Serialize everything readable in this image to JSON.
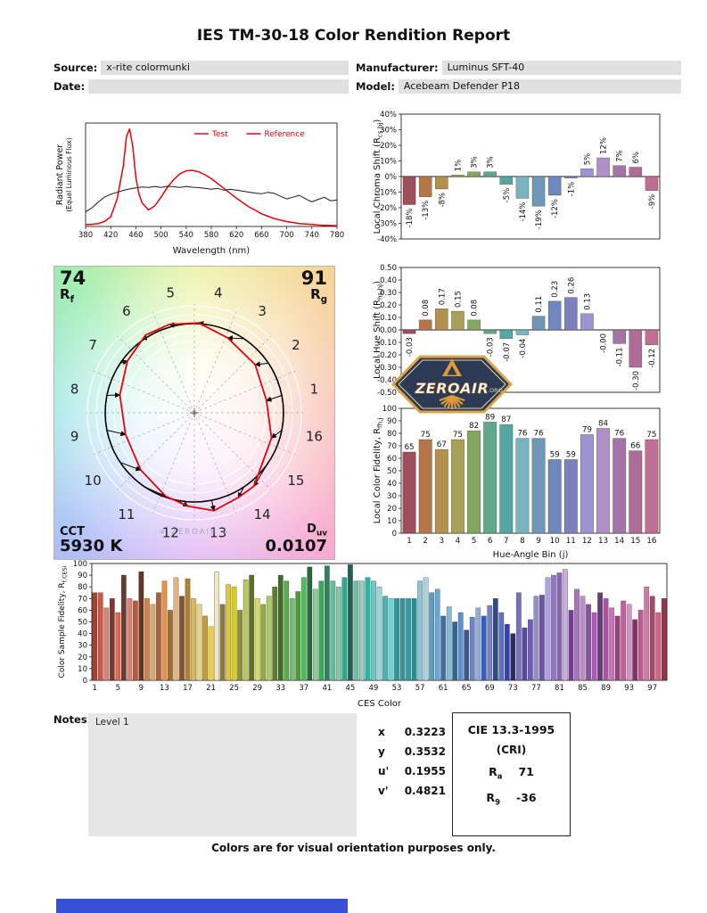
{
  "report": {
    "title": "IES TM-30-18 Color Rendition Report",
    "fields": {
      "source_label": "Source:",
      "source_value": "x-rite colormunki",
      "date_label": "Date:",
      "date_value": "",
      "manufacturer_label": "Manufacturer:",
      "manufacturer_value": "Luminus SFT-40",
      "model_label": "Model:",
      "model_value": "Acebeam Defender P18"
    },
    "notes_label": "Notes:",
    "notes_value": "Level 1",
    "chromaticity": [
      {
        "label": "x",
        "value": "0.3223"
      },
      {
        "label": "y",
        "value": "0.3532"
      },
      {
        "label": "u'",
        "value": "0.1955"
      },
      {
        "label": "v'",
        "value": "0.4821"
      }
    ],
    "cri_box": {
      "title": "CIE 13.3-1995",
      "subtitle": "(CRI)",
      "ra_main": "R",
      "ra_sub": "a",
      "ra_value": "71",
      "r9_main": "R",
      "r9_sub": "9",
      "r9_value": "-36"
    },
    "footer": "Colors are for visual orientation purposes only.",
    "bottom_bar_color": "#3a4fd8",
    "watermark_badge": {
      "name": "ZEROAIR",
      "suffix": ".ORG"
    },
    "watermark_small": "+ ZEROAIR +"
  },
  "vector_graphic": {
    "rf_value": "74",
    "rf_main": "R",
    "rf_sub": "f",
    "rg_value": "91",
    "rg_main": "R",
    "rg_sub": "g",
    "cct_label": "CCT",
    "cct_value": "5930 K",
    "duv_main": "D",
    "duv_sub": "uv",
    "duv_value": "0.0107",
    "test_color": "#e8000b",
    "reference_color": "#000000"
  },
  "bin_colors": [
    "#9e4f5c",
    "#b5764a",
    "#b3914c",
    "#a8a058",
    "#82a65e",
    "#5fa98b",
    "#56a6a4",
    "#79b3bd",
    "#6f97b8",
    "#6f87bb",
    "#7e80bd",
    "#9b94cf",
    "#af8fc6",
    "#a275a6",
    "#ad6d96",
    "#c06e93"
  ],
  "chart_data": [
    {
      "id": "spd",
      "type": "line",
      "xlabel": "Wavelength (nm)",
      "ylabel_lines": [
        "Radiant Power",
        "(Equal Luminous Flux)"
      ],
      "xlim": [
        380,
        780
      ],
      "ylim": [
        0,
        1.06
      ],
      "xticks": [
        380,
        420,
        460,
        500,
        540,
        580,
        620,
        660,
        700,
        740,
        780
      ],
      "series": [
        {
          "name": "Test",
          "color": "#e8000b",
          "legend_color": "#e8000b",
          "width": 1.5,
          "x": [
            380,
            390,
            400,
            410,
            420,
            430,
            440,
            445,
            450,
            455,
            460,
            465,
            470,
            480,
            490,
            500,
            510,
            520,
            530,
            540,
            550,
            560,
            570,
            580,
            590,
            600,
            610,
            620,
            630,
            640,
            650,
            660,
            670,
            680,
            690,
            700,
            710,
            720,
            730,
            740,
            750,
            760,
            770,
            780
          ],
          "y": [
            0.02,
            0.02,
            0.03,
            0.05,
            0.1,
            0.28,
            0.62,
            0.92,
            1.0,
            0.82,
            0.5,
            0.33,
            0.24,
            0.17,
            0.21,
            0.3,
            0.4,
            0.48,
            0.54,
            0.57,
            0.575,
            0.56,
            0.53,
            0.49,
            0.44,
            0.39,
            0.34,
            0.29,
            0.245,
            0.2,
            0.165,
            0.13,
            0.105,
            0.08,
            0.065,
            0.05,
            0.04,
            0.03,
            0.025,
            0.02,
            0.015,
            0.012,
            0.01,
            0.008
          ]
        },
        {
          "name": "Reference",
          "color": "#1a1a1a",
          "legend_color": "#e8000b",
          "width": 1,
          "x": [
            380,
            390,
            400,
            410,
            420,
            430,
            440,
            450,
            460,
            470,
            480,
            490,
            500,
            510,
            520,
            530,
            540,
            550,
            560,
            570,
            580,
            590,
            600,
            610,
            620,
            630,
            640,
            650,
            660,
            670,
            680,
            690,
            700,
            710,
            720,
            730,
            740,
            750,
            760,
            770,
            780
          ],
          "y": [
            0.15,
            0.19,
            0.25,
            0.3,
            0.33,
            0.35,
            0.37,
            0.385,
            0.395,
            0.405,
            0.4,
            0.41,
            0.4,
            0.412,
            0.408,
            0.4,
            0.41,
            0.402,
            0.398,
            0.39,
            0.382,
            0.39,
            0.372,
            0.38,
            0.372,
            0.362,
            0.352,
            0.342,
            0.335,
            0.35,
            0.34,
            0.31,
            0.282,
            0.3,
            0.32,
            0.282,
            0.252,
            0.278,
            0.3,
            0.262,
            0.272
          ]
        }
      ]
    },
    {
      "id": "chroma_shift",
      "type": "bar",
      "ylabel_parts": {
        "pre": "Local Chroma Shift (R",
        "sub": "cs,hj",
        "post": ")"
      },
      "ylim": [
        -40,
        40
      ],
      "yticks": [
        "40%",
        "30%",
        "20%",
        "10%",
        "0%",
        "-10%",
        "-20%",
        "-30%",
        "-40%"
      ],
      "categories": [
        1,
        2,
        3,
        4,
        5,
        6,
        7,
        8,
        9,
        10,
        11,
        12,
        13,
        14,
        15,
        16
      ],
      "values": [
        -18,
        -13,
        -8,
        1,
        3,
        3,
        -5,
        -14,
        -19,
        -12,
        -1,
        5,
        12,
        7,
        6,
        -9
      ],
      "value_labels": [
        "-18%",
        "-13%",
        "-8%",
        "1%",
        "3%",
        "3%",
        "-5%",
        "-14%",
        "-19%",
        "-12%",
        "-1%",
        "5%",
        "12%",
        "7%",
        "6%",
        "-9%"
      ]
    },
    {
      "id": "hue_shift",
      "type": "bar",
      "ylabel_parts": {
        "pre": "Local Hue Shift (R",
        "sub": "hs,hj",
        "post": ")"
      },
      "ylim": [
        -0.5,
        0.5
      ],
      "yticks": [
        "0.50",
        "0.40",
        "0.30",
        "0.20",
        "0.10",
        "0.00",
        "-0.10",
        "-0.20",
        "-0.30",
        "-0.40",
        "-0.50"
      ],
      "categories": [
        1,
        2,
        3,
        4,
        5,
        6,
        7,
        8,
        9,
        10,
        11,
        12,
        13,
        14,
        15,
        16
      ],
      "values": [
        -0.03,
        0.08,
        0.17,
        0.15,
        0.08,
        -0.03,
        -0.07,
        -0.04,
        0.11,
        0.23,
        0.26,
        0.13,
        -0.0,
        -0.11,
        -0.3,
        -0.12
      ],
      "value_labels": [
        "-0.03",
        "0.08",
        "0.17",
        "0.15",
        "0.08",
        "-0.03",
        "-0.07",
        "-0.04",
        "0.11",
        "0.23",
        "0.26",
        "0.13",
        "-0.00",
        "-0.11",
        "-0.30",
        "-0.12"
      ]
    },
    {
      "id": "local_fidelity",
      "type": "bar",
      "xlabel": "Hue-Angle Bin (j)",
      "ylabel_parts": {
        "pre": "Local Color Fidelity, R",
        "sub": "fh,j",
        "post": ""
      },
      "ylim": [
        0,
        100
      ],
      "yticks": [
        "100",
        "90",
        "80",
        "70",
        "60",
        "50",
        "40",
        "30",
        "20",
        "10",
        "0"
      ],
      "categories": [
        1,
        2,
        3,
        4,
        5,
        6,
        7,
        8,
        9,
        10,
        11,
        12,
        13,
        14,
        15,
        16
      ],
      "values": [
        65,
        75,
        67,
        75,
        82,
        89,
        87,
        76,
        76,
        59,
        59,
        79,
        84,
        76,
        66,
        75
      ],
      "value_labels": [
        "65",
        "75",
        "67",
        "75",
        "82",
        "89",
        "87",
        "76",
        "76",
        "59",
        "59",
        "79",
        "84",
        "76",
        "66",
        "75"
      ]
    },
    {
      "id": "ces",
      "type": "bar",
      "xlabel": "CES Color",
      "ylabel_parts": {
        "pre": "Color Sample Fidelity, R",
        "sub": "f,CESi",
        "post": ""
      },
      "ylim": [
        0,
        100
      ],
      "yticks": [
        "100",
        "90",
        "80",
        "70",
        "60",
        "50",
        "40",
        "30",
        "20",
        "10",
        "0"
      ],
      "categories": [
        1,
        2,
        3,
        4,
        5,
        6,
        7,
        8,
        9,
        10,
        11,
        12,
        13,
        14,
        15,
        16,
        17,
        18,
        19,
        20,
        21,
        22,
        23,
        24,
        25,
        26,
        27,
        28,
        29,
        30,
        31,
        32,
        33,
        34,
        35,
        36,
        37,
        38,
        39,
        40,
        41,
        42,
        43,
        44,
        45,
        46,
        47,
        48,
        49,
        50,
        51,
        52,
        53,
        54,
        55,
        56,
        57,
        58,
        59,
        60,
        61,
        62,
        63,
        64,
        65,
        66,
        67,
        68,
        69,
        70,
        71,
        72,
        73,
        74,
        75,
        76,
        77,
        78,
        79,
        80,
        81,
        82,
        83,
        84,
        85,
        86,
        87,
        88,
        89,
        90,
        91,
        92,
        93,
        94,
        95,
        96,
        97,
        98,
        99
      ],
      "values": [
        75,
        75,
        62,
        70,
        58,
        90,
        70,
        68,
        93,
        70,
        65,
        75,
        85,
        60,
        88,
        72,
        87,
        70,
        65,
        55,
        46,
        93,
        65,
        82,
        80,
        60,
        86,
        90,
        70,
        65,
        72,
        80,
        90,
        85,
        70,
        76,
        88,
        97,
        78,
        85,
        98,
        85,
        80,
        88,
        99,
        85,
        85,
        88,
        85,
        80,
        72,
        70,
        70,
        70,
        70,
        70,
        85,
        88,
        75,
        78,
        55,
        63,
        50,
        58,
        43,
        54,
        62,
        55,
        64,
        70,
        58,
        48,
        40,
        75,
        45,
        52,
        72,
        73,
        88,
        90,
        92,
        95,
        60,
        78,
        72,
        65,
        58,
        75,
        70,
        62,
        55,
        68,
        65,
        52,
        60,
        80,
        72,
        58,
        70
      ],
      "colors": [
        "hsl(8,50%,42%)",
        "hsl(5,55%,55%)",
        "hsl(10,60%,65%)",
        "hsl(3,45%,35%)",
        "hsl(12,65%,58%)",
        "hsl(8,35%,30%)",
        "hsl(5,70%,68%)",
        "hsl(15,55%,48%)",
        "hsl(18,45%,26%)",
        "hsl(25,60%,55%)",
        "hsl(30,65%,65%)",
        "hsl(22,50%,45%)",
        "hsl(28,70%,60%)",
        "hsl(35,55%,40%)",
        "hsl(30,75%,70%)",
        "hsl(25,45%,35%)",
        "hsl(38,50%,45%)",
        "hsl(45,65%,60%)",
        "hsl(50,70%,70%)",
        "hsl(42,55%,50%)",
        "hsl(48,80%,62%)",
        "hsl(50,60%,85%)",
        "hsl(45,40%,40%)",
        "hsl(52,70%,55%)",
        "hsl(58,65%,50%)",
        "hsl(62,50%,38%)",
        "hsl(68,55%,55%)",
        "hsl(75,45%,30%)",
        "hsl(65,60%,65%)",
        "hsl(72,50%,45%)",
        "hsl(80,55%,58%)",
        "hsl(85,40%,35%)",
        "hsl(100,40%,30%)",
        "hsl(110,45%,48%)",
        "hsl(120,35%,60%)",
        "hsl(105,50%,40%)",
        "hsl(130,45%,52%)",
        "hsl(140,50%,28%)",
        "hsl(125,40%,68%)",
        "hsl(135,45%,45%)",
        "hsl(155,45%,35%)",
        "hsl(160,50%,55%)",
        "hsl(150,40%,65%)",
        "hsl(165,55%,42%)",
        "hsl(170,50%,25%)",
        "hsl(158,45%,58%)",
        "hsl(165,35%,70%)",
        "hsl(172,55%,45%)",
        "hsl(178,45%,60%)",
        "hsl(182,50%,72%)",
        "hsl(175,40%,50%)",
        "hsl(185,55%,65%)",
        "hsl(180,60%,38%)",
        "hsl(183,55%,40%)",
        "hsl(186,58%,42%)",
        "hsl(180,50%,36%)",
        "hsl(195,45%,70%)",
        "hsl(198,50%,78%)",
        "hsl(200,40%,55%)",
        "hsl(205,45%,62%)",
        "hsl(210,50%,45%)",
        "hsl(200,55%,68%)",
        "hsl(208,45%,38%)",
        "hsl(212,50%,58%)",
        "hsl(218,45%,40%)",
        "hsl(222,50%,60%)",
        "hsl(215,40%,70%)",
        "hsl(225,55%,50%)",
        "hsl(230,45%,62%)",
        "hsl(220,50%,35%)",
        "hsl(228,40%,55%)",
        "hsl(233,55%,45%)",
        "hsl(240,45%,30%)",
        "hsl(245,40%,60%)",
        "hsl(250,35%,45%)",
        "hsl(255,45%,55%)",
        "hsl(248,40%,68%)",
        "hsl(258,35%,50%)",
        "hsl(252,45%,75%)",
        "hsl(260,40%,62%)",
        "hsl(268,35%,55%)",
        "hsl(272,45%,78%)",
        "hsl(278,40%,40%)",
        "hsl(282,35%,60%)",
        "hsl(288,45%,68%)",
        "hsl(275,30%,48%)",
        "hsl(292,40%,55%)",
        "hsl(285,35%,35%)",
        "hsl(305,40%,50%)",
        "hsl(312,45%,62%)",
        "hsl(318,35%,42%)",
        "hsl(325,50%,58%)",
        "hsl(310,40%,70%)",
        "hsl(320,45%,35%)",
        "hsl(328,40%,55%)",
        "hsl(332,50%,65%)",
        "hsl(340,45%,48%)",
        "hsl(345,50%,60%)",
        "hsl(350,45%,40%)"
      ]
    }
  ]
}
